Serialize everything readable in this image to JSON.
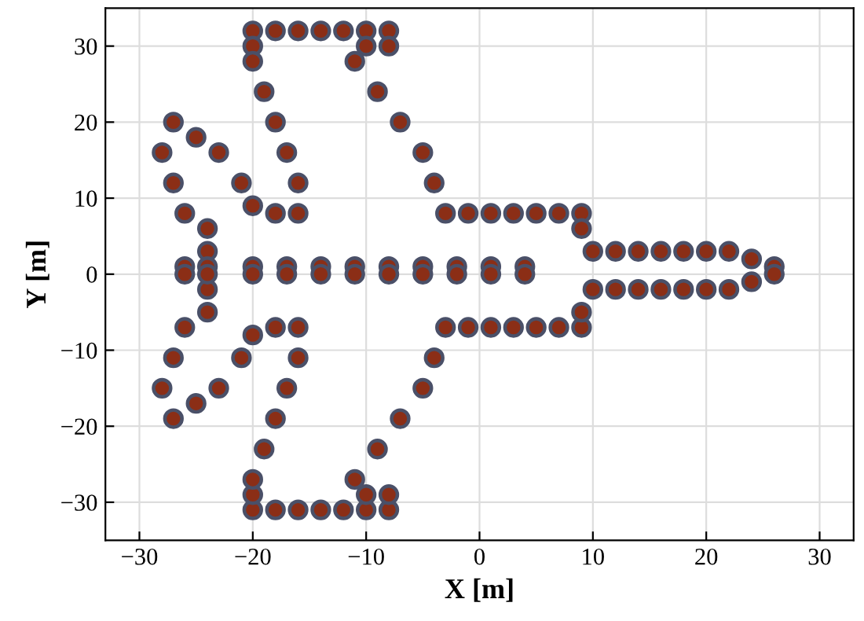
{
  "chart_data": {
    "type": "scatter",
    "xlabel": "X [m]",
    "ylabel": "Y [m]",
    "xlim": [
      -33,
      33
    ],
    "ylim": [
      -35,
      35
    ],
    "xticks": [
      -30,
      -20,
      -10,
      0,
      10,
      20,
      30
    ],
    "yticks": [
      -30,
      -20,
      -10,
      0,
      10,
      20,
      30
    ],
    "grid": true,
    "marker": "circle",
    "series": [
      {
        "color": "#8b2e16",
        "x": [
          -20,
          -18,
          -16,
          -14,
          -12,
          -10,
          -8,
          -20,
          -10,
          -8,
          -20,
          -11,
          -19,
          -9,
          -27,
          -18,
          -7,
          -25,
          -28,
          -23,
          -17,
          -5,
          -27,
          -21,
          -16,
          -4,
          -20,
          -26,
          -18,
          -16,
          -3,
          -1,
          1,
          3,
          5,
          7,
          9,
          9,
          -24,
          -24,
          10,
          12,
          14,
          16,
          18,
          20,
          22,
          24,
          -26,
          -24,
          -20,
          -17,
          -14,
          -11,
          -8,
          -5,
          -2,
          1,
          4,
          26,
          -20,
          -18,
          -16,
          -14,
          -12,
          -10,
          -8,
          -20,
          -10,
          -8,
          -20,
          -11,
          -19,
          -9,
          -27,
          -18,
          -7,
          -25,
          -28,
          -23,
          -17,
          -5,
          -27,
          -21,
          -16,
          -4,
          -20,
          -26,
          -18,
          -16,
          -3,
          -1,
          1,
          3,
          5,
          7,
          9,
          9,
          -24,
          -24,
          10,
          12,
          14,
          16,
          18,
          20,
          22,
          24,
          -26,
          -24,
          -20,
          -17,
          -14,
          -11,
          -8,
          -5,
          -2,
          1,
          4,
          26
        ],
        "values": [
          32,
          32,
          32,
          32,
          32,
          32,
          32,
          30,
          30,
          30,
          28,
          28,
          24,
          24,
          20,
          20,
          20,
          18,
          16,
          16,
          16,
          16,
          12,
          12,
          12,
          12,
          9,
          8,
          8,
          8,
          8,
          8,
          8,
          8,
          8,
          8,
          8,
          6,
          6,
          3,
          3,
          3,
          3,
          3,
          3,
          3,
          3,
          2,
          1,
          1,
          1,
          1,
          1,
          1,
          1,
          1,
          1,
          1,
          1,
          1,
          -31,
          -31,
          -31,
          -31,
          -31,
          -31,
          -31,
          -29,
          -29,
          -29,
          -27,
          -27,
          -23,
          -23,
          -19,
          -19,
          -19,
          -17,
          -15,
          -15,
          -15,
          -15,
          -11,
          -11,
          -11,
          -11,
          -8,
          -7,
          -7,
          -7,
          -7,
          -7,
          -7,
          -7,
          -7,
          -7,
          -7,
          -5,
          -5,
          -2,
          -2,
          -2,
          -2,
          -2,
          -2,
          -2,
          -2,
          -1,
          0,
          0,
          0,
          0,
          0,
          0,
          0,
          0,
          0,
          0,
          0,
          0
        ]
      }
    ]
  }
}
